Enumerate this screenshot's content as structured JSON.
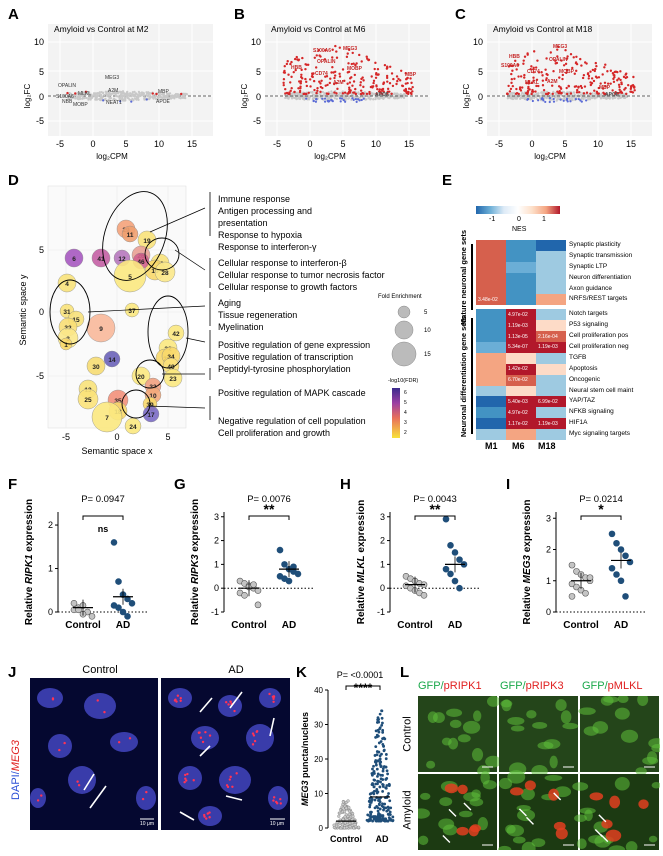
{
  "panels": {
    "A": {
      "letter": "A",
      "title": "Amyloid vs Control at M2",
      "xlabel": "log₂CPM",
      "ylabel": "log₂FC",
      "xticks": [
        "-5",
        "0",
        "5",
        "10",
        "15"
      ],
      "yticks": [
        "10",
        "5",
        "0",
        "-5"
      ],
      "labels": [
        "MEG3",
        "OPALIN",
        "S100A6",
        "MLKL",
        "A2M",
        "NBB",
        "MOBP",
        "NEAT1",
        "MBP",
        "APOE"
      ]
    },
    "B": {
      "letter": "B",
      "title": "Amyloid vs Control at M6",
      "xlabel": "log₂CPM",
      "ylabel": "log₂FC",
      "xticks": [
        "-5",
        "0",
        "5",
        "10",
        "15"
      ],
      "yticks": [
        "10",
        "5",
        "0",
        "-5"
      ],
      "labels": [
        "S100A6",
        "MEG3",
        "OPALIN",
        "HBB",
        "CD74",
        "MOBP",
        "A2M",
        "MBP",
        "APOE"
      ]
    },
    "C": {
      "letter": "C",
      "title": "Amyloid vs Control at M18",
      "xlabel": "log₂CPM",
      "ylabel": "log₂FC",
      "xticks": [
        "-5",
        "0",
        "5",
        "10",
        "15"
      ],
      "yticks": [
        "10",
        "5",
        "0",
        "-5"
      ],
      "labels": [
        "MEG3",
        "HBB",
        "S100A6",
        "OPALIN",
        "CD74",
        "MOBP",
        "MLKL",
        "A2M",
        "MBP",
        "APOE"
      ]
    },
    "D": {
      "letter": "D",
      "xlabel": "Semantic space x",
      "ylabel": "Semantic space y",
      "xticks": [
        "-5",
        "0",
        "5"
      ],
      "yticks": [
        "5",
        "0",
        "-5"
      ],
      "annotations": [
        [
          "Immune response",
          "Antigen processing and",
          "presentation",
          "Response to hypoxia",
          "Response to interferon-γ"
        ],
        [
          "Cellular response to interferon-β",
          "Cellular response to tumor necrosis factor",
          "Cellular response to growth factors"
        ],
        [
          "Aging",
          "Tissue regeneration",
          "Myelination"
        ],
        [
          "Positive regulation of gene expression",
          "Positive regulation of transcription",
          "Peptidyl-tyrosine phosphorylation"
        ],
        [
          "Positive regulation of MAPK cascade"
        ],
        [
          "Negative regulation of cell population",
          "Cell proliferation and growth"
        ]
      ],
      "fold_title": "Fold Enrichment",
      "fold_values": [
        "5",
        "10",
        "15"
      ],
      "fdr_title": "-log10(FDR)",
      "fdr_ticks": [
        "6",
        "5",
        "4",
        "3",
        "2"
      ]
    },
    "E": {
      "letter": "E",
      "nes_label": "NES",
      "nes_ticks": [
        "-1",
        "0",
        "1"
      ],
      "columns": [
        "M1",
        "M6",
        "M18"
      ],
      "group1": "Mature neuronal gene sets",
      "group2": "Neuronal differentiation gene sets",
      "rows": [
        "Synaptic plasticity",
        "Synaptic transmission",
        "Synaptic LTP",
        "Neuron differentiation",
        "Axon guidance",
        "NRFS/REST targets",
        "Notch targets",
        "P53 signaling",
        "Cell proliferation pos",
        "Cell proliferation neg",
        "TGFB",
        "Apoptosis",
        "Oncogenic",
        "Neural stem cell maint",
        "YAP/TAZ",
        "NFKB signaling",
        "HIF1A",
        "Myc signaling targets"
      ],
      "cell_values": {
        "r5c0": "3.48e-02",
        "r6c1": "4.97e-02",
        "r7c1": "1.19e-03",
        "r8c1": "1.13e-05",
        "r8c2": "2.16e-04",
        "r9c1": "5.34e-07",
        "r9c2": "1.19e-03",
        "r11c1": "1.42e-02",
        "r12c1": "6.70e-02",
        "r14c1": "5.40e-03",
        "r14c2": "6.99e-02",
        "r15c1": "4.97e-02",
        "r16c1": "1.17e-02",
        "r16c2": "1.19e-03"
      }
    },
    "F": {
      "letter": "F",
      "gene": "RIPK1",
      "ylabel_pre": "Relative ",
      "ylabel_post": " expression",
      "p": "P= 0.0947",
      "sig": "ns",
      "groups": [
        "Control",
        "AD"
      ],
      "yticks": [
        "2",
        "1",
        "0"
      ]
    },
    "G": {
      "letter": "G",
      "gene": "RIPK3",
      "ylabel_pre": "Relative ",
      "ylabel_post": " expression",
      "p": "P= 0.0076",
      "sig": "**",
      "groups": [
        "Control",
        "AD"
      ],
      "yticks": [
        "3",
        "2",
        "1",
        "0",
        "-1"
      ]
    },
    "H": {
      "letter": "H",
      "gene": "MLKL",
      "ylabel_pre": "Relative ",
      "ylabel_post": " expression",
      "p": "P= 0.0043",
      "sig": "**",
      "groups": [
        "Control",
        "AD"
      ],
      "yticks": [
        "3",
        "2",
        "1",
        "0",
        "-1"
      ]
    },
    "I": {
      "letter": "I",
      "gene": "MEG3",
      "ylabel_pre": "Relative ",
      "ylabel_post": " expression",
      "p": "P= 0.0214",
      "sig": "*",
      "groups": [
        "Control",
        "AD"
      ],
      "yticks": [
        "3",
        "2",
        "1",
        "0"
      ]
    },
    "J": {
      "letter": "J",
      "label_dapi": "DAPI/",
      "label_gene": "MEG3",
      "cond1": "Control",
      "cond2": "AD",
      "scale": "10 μm"
    },
    "K": {
      "letter": "K",
      "p": "P= <0.0001",
      "sig": "****",
      "gene": "MEG3",
      "ylabel_post": " puncta/nucleus",
      "groups": [
        "Control",
        "AD"
      ],
      "yticks": [
        "40",
        "30",
        "20",
        "10",
        "0"
      ]
    },
    "L": {
      "letter": "L",
      "headers": [
        [
          "GFP/",
          "pRIPK1"
        ],
        [
          "GFP/",
          "pRIPK3"
        ],
        [
          "GFP/",
          "pMLKL"
        ]
      ],
      "rows": [
        "Control",
        "Amyloid"
      ]
    }
  },
  "colors": {
    "red": "#d62728",
    "blue": "#2b6cb0",
    "grey": "#bdbdbd"
  }
}
